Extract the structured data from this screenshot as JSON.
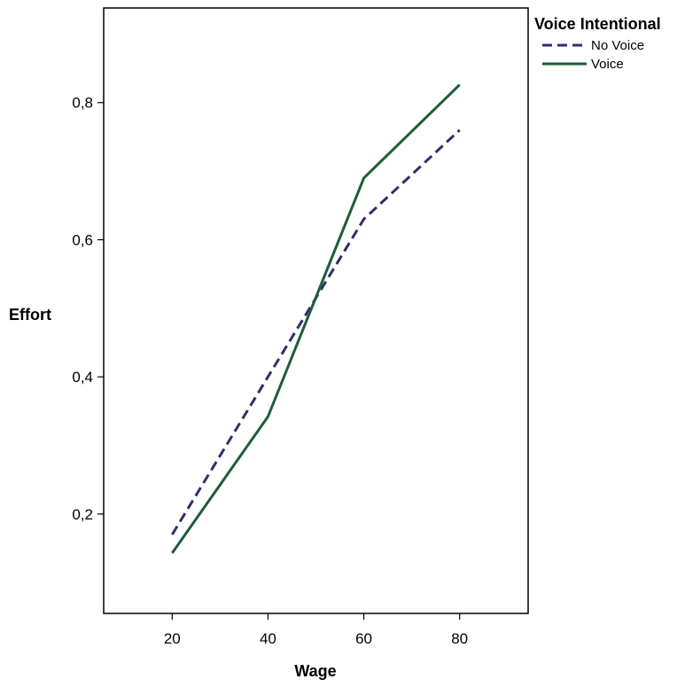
{
  "chart_data": {
    "type": "line",
    "xlabel": "Wage",
    "ylabel": "Effort",
    "x": [
      20,
      40,
      60,
      80
    ],
    "x_ticks": [
      "20",
      "40",
      "60",
      "80"
    ],
    "y_ticks": [
      "0,2",
      "0,4",
      "0,6",
      "0,8"
    ],
    "y_tick_values": [
      0.2,
      0.4,
      0.6,
      0.8
    ],
    "xlim": [
      5.7,
      94.3
    ],
    "ylim": [
      0.055,
      0.938
    ],
    "grid": false,
    "legend": {
      "title": "Voice Intentional",
      "placement": "top-right-outside"
    },
    "series": [
      {
        "name": "No Voice",
        "values": [
          0.17,
          0.4,
          0.63,
          0.76
        ],
        "color": "#2f2f6e",
        "style": "dashed"
      },
      {
        "name": "Voice",
        "values": [
          0.143,
          0.342,
          0.69,
          0.826
        ],
        "color": "#1e5c3a",
        "style": "solid"
      }
    ]
  }
}
